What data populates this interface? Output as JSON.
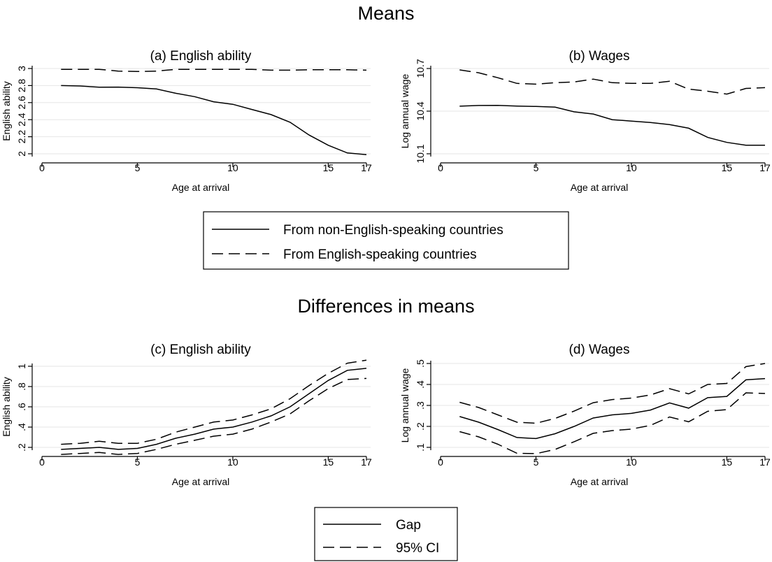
{
  "sections": {
    "top": "Means",
    "bottom": "Differences in means"
  },
  "legends": [
    {
      "entries": [
        {
          "label": "From non-English-speaking countries",
          "style": "solid"
        },
        {
          "label": "From English-speaking countries",
          "style": "dashed"
        }
      ]
    },
    {
      "entries": [
        {
          "label": "Gap",
          "style": "solid"
        },
        {
          "label": "95% CI",
          "style": "dashed"
        }
      ]
    }
  ],
  "chart_data": [
    {
      "type": "line",
      "title": "(a) English ability",
      "xlabel": "Age at arrival",
      "ylabel": "English ability",
      "xlim": [
        0,
        17
      ],
      "ylim": [
        2,
        3
      ],
      "xticks": [
        0,
        5,
        10,
        15,
        17
      ],
      "yticks": [
        2,
        2.2,
        2.4,
        2.6,
        2.8,
        3
      ],
      "ytick_labels": [
        "2",
        "2.2",
        "2.4",
        "2.6",
        "2.8",
        "3"
      ],
      "grid": true,
      "x": [
        1,
        2,
        3,
        4,
        5,
        6,
        7,
        8,
        9,
        10,
        11,
        12,
        13,
        14,
        15,
        16,
        17
      ],
      "series": [
        {
          "name": "From non-English-speaking countries",
          "style": "solid",
          "values": [
            2.8,
            2.795,
            2.78,
            2.782,
            2.775,
            2.76,
            2.71,
            2.67,
            2.61,
            2.58,
            2.52,
            2.46,
            2.37,
            2.22,
            2.1,
            2.01,
            1.99
          ]
        },
        {
          "name": "From English-speaking countries",
          "style": "dashed",
          "values": [
            2.99,
            2.99,
            2.99,
            2.97,
            2.965,
            2.97,
            2.99,
            2.99,
            2.99,
            2.99,
            2.99,
            2.98,
            2.98,
            2.985,
            2.985,
            2.985,
            2.98
          ]
        }
      ]
    },
    {
      "type": "line",
      "title": "(b) Wages",
      "xlabel": "Age at arrival",
      "ylabel": "Log annual wage",
      "xlim": [
        0,
        17
      ],
      "ylim": [
        10.1,
        10.7
      ],
      "xticks": [
        0,
        5,
        10,
        15,
        17
      ],
      "yticks": [
        10.1,
        10.4,
        10.7
      ],
      "ytick_labels": [
        "10.1",
        "10.4",
        "10.7"
      ],
      "grid": true,
      "x": [
        1,
        2,
        3,
        4,
        5,
        6,
        7,
        8,
        9,
        10,
        11,
        12,
        13,
        14,
        15,
        16,
        17
      ],
      "series": [
        {
          "name": "From non-English-speaking countries",
          "style": "solid",
          "values": [
            10.435,
            10.44,
            10.441,
            10.436,
            10.433,
            10.428,
            10.395,
            10.38,
            10.34,
            10.33,
            10.32,
            10.305,
            10.28,
            10.215,
            10.18,
            10.16,
            10.16
          ]
        },
        {
          "name": "From English-speaking countries",
          "style": "dashed",
          "values": [
            10.69,
            10.67,
            10.635,
            10.595,
            10.59,
            10.6,
            10.605,
            10.625,
            10.6,
            10.595,
            10.595,
            10.61,
            10.555,
            10.54,
            10.52,
            10.56,
            10.565
          ]
        }
      ]
    },
    {
      "type": "line",
      "title": "(c) English ability",
      "xlabel": "Age at arrival",
      "ylabel": "English ability",
      "xlim": [
        0,
        17
      ],
      "ylim": [
        0.2,
        1
      ],
      "xticks": [
        0,
        5,
        10,
        15,
        17
      ],
      "yticks": [
        0.2,
        0.4,
        0.6,
        0.8,
        1
      ],
      "ytick_labels": [
        ".2",
        ".4",
        ".6",
        ".8",
        "1"
      ],
      "grid": true,
      "x": [
        1,
        2,
        3,
        4,
        5,
        6,
        7,
        8,
        9,
        10,
        11,
        12,
        13,
        14,
        15,
        16,
        17
      ],
      "series": [
        {
          "name": "Gap",
          "style": "solid",
          "values": [
            0.18,
            0.19,
            0.2,
            0.18,
            0.19,
            0.23,
            0.29,
            0.33,
            0.38,
            0.4,
            0.45,
            0.51,
            0.6,
            0.73,
            0.86,
            0.96,
            0.98
          ]
        },
        {
          "name": "95% CI",
          "style": "dashed",
          "values": [
            0.23,
            0.24,
            0.26,
            0.24,
            0.24,
            0.28,
            0.35,
            0.4,
            0.45,
            0.47,
            0.52,
            0.58,
            0.68,
            0.81,
            0.93,
            1.03,
            1.06
          ]
        },
        {
          "name": "95% CI",
          "style": "dashed",
          "values": [
            0.13,
            0.14,
            0.15,
            0.13,
            0.14,
            0.18,
            0.23,
            0.27,
            0.31,
            0.33,
            0.38,
            0.45,
            0.53,
            0.66,
            0.78,
            0.87,
            0.88
          ]
        }
      ]
    },
    {
      "type": "line",
      "title": "(d) Wages",
      "xlabel": "Age at arrival",
      "ylabel": "Log annual wage",
      "xlim": [
        0,
        17
      ],
      "ylim": [
        0.1,
        0.5
      ],
      "xticks": [
        0,
        5,
        10,
        15,
        17
      ],
      "yticks": [
        0.1,
        0.2,
        0.3,
        0.4,
        0.5
      ],
      "ytick_labels": [
        ".1",
        ".2",
        ".3",
        ".4",
        ".5"
      ],
      "grid": true,
      "x": [
        1,
        2,
        3,
        4,
        5,
        6,
        7,
        8,
        9,
        10,
        11,
        12,
        13,
        14,
        15,
        16,
        17
      ],
      "series": [
        {
          "name": "Gap",
          "style": "solid",
          "values": [
            0.247,
            0.22,
            0.185,
            0.147,
            0.142,
            0.165,
            0.2,
            0.24,
            0.255,
            0.262,
            0.278,
            0.312,
            0.287,
            0.337,
            0.343,
            0.422,
            0.428
          ]
        },
        {
          "name": "95% CI",
          "style": "dashed",
          "values": [
            0.315,
            0.29,
            0.255,
            0.22,
            0.215,
            0.238,
            0.273,
            0.313,
            0.328,
            0.335,
            0.35,
            0.38,
            0.355,
            0.4,
            0.405,
            0.485,
            0.5
          ]
        },
        {
          "name": "95% CI",
          "style": "dashed",
          "values": [
            0.175,
            0.15,
            0.115,
            0.072,
            0.07,
            0.09,
            0.127,
            0.167,
            0.18,
            0.187,
            0.205,
            0.245,
            0.222,
            0.272,
            0.28,
            0.36,
            0.357
          ]
        }
      ]
    }
  ]
}
